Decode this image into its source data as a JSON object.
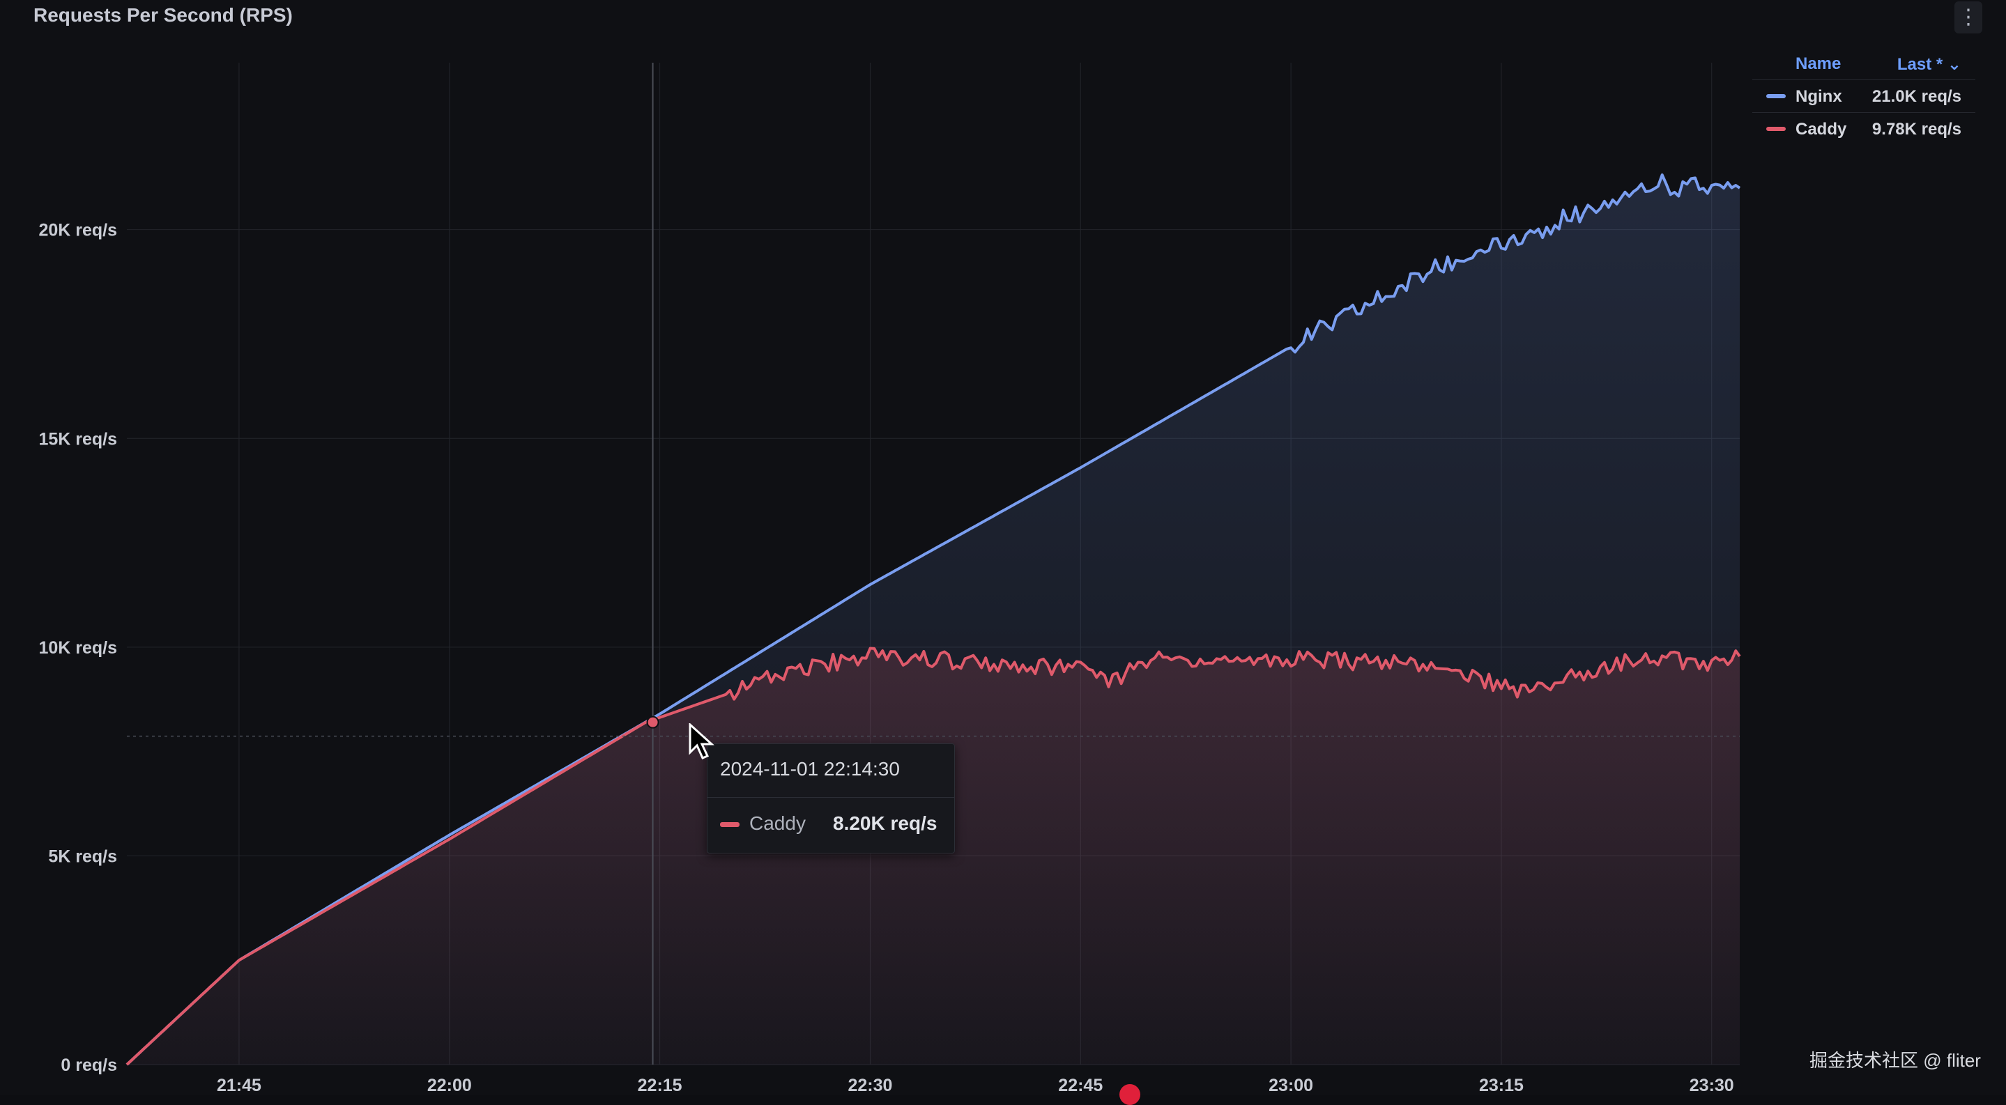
{
  "panel": {
    "title": "Requests Per Second (RPS)",
    "menu_icon": "vertical-ellipsis-icon"
  },
  "legend": {
    "name_header": "Name",
    "last_header": "Last * ⌄",
    "items": [
      {
        "name": "Nginx",
        "value": "21.0K req/s",
        "color": "#7a9ef0"
      },
      {
        "name": "Caddy",
        "value": "9.78K req/s",
        "color": "#e05a6b"
      }
    ]
  },
  "tooltip": {
    "time": "2024-11-01 22:14:30",
    "series_name": "Caddy",
    "series_value": "8.20K req/s",
    "color": "#e05a6b"
  },
  "watermark": "掘金技术社区 @ fliter",
  "chart_data": {
    "type": "area",
    "title": "Requests Per Second (RPS)",
    "x_unit": "time",
    "x_ticks": [
      "21:45",
      "22:00",
      "22:15",
      "22:30",
      "22:45",
      "23:00",
      "23:15",
      "23:30"
    ],
    "y_ticks": [
      "0 req/s",
      "5K req/s",
      "10K req/s",
      "15K req/s",
      "20K req/s"
    ],
    "ylim": [
      0,
      24000
    ],
    "xlim": [
      "21:37",
      "23:32"
    ],
    "grid": true,
    "legend_position": "top-right",
    "crosshair": {
      "time": "22:14:30",
      "value": 8200
    },
    "series": [
      {
        "name": "Nginx",
        "color": "#7a9ef0",
        "points": [
          [
            "21:37",
            0
          ],
          [
            "21:45",
            2500
          ],
          [
            "22:00",
            5500
          ],
          [
            "22:15",
            8400
          ],
          [
            "22:30",
            11500
          ],
          [
            "22:45",
            14300
          ],
          [
            "23:00",
            17200
          ],
          [
            "23:10",
            19000
          ],
          [
            "23:15",
            19700
          ],
          [
            "23:20",
            20300
          ],
          [
            "23:25",
            21100
          ],
          [
            "23:30",
            21000
          ],
          [
            "23:32",
            21000
          ]
        ]
      },
      {
        "name": "Caddy",
        "color": "#e05a6b",
        "points": [
          [
            "21:37",
            0
          ],
          [
            "21:45",
            2500
          ],
          [
            "22:00",
            5400
          ],
          [
            "22:14",
            8200
          ],
          [
            "22:20",
            8900
          ],
          [
            "22:25",
            9500
          ],
          [
            "22:30",
            9800
          ],
          [
            "22:35",
            9700
          ],
          [
            "22:40",
            9600
          ],
          [
            "22:45",
            9500
          ],
          [
            "22:47",
            9100
          ],
          [
            "22:50",
            9700
          ],
          [
            "23:00",
            9700
          ],
          [
            "23:10",
            9600
          ],
          [
            "23:15",
            9100
          ],
          [
            "23:17",
            8900
          ],
          [
            "23:20",
            9300
          ],
          [
            "23:25",
            9800
          ],
          [
            "23:30",
            9600
          ],
          [
            "23:32",
            9780
          ]
        ]
      }
    ]
  }
}
